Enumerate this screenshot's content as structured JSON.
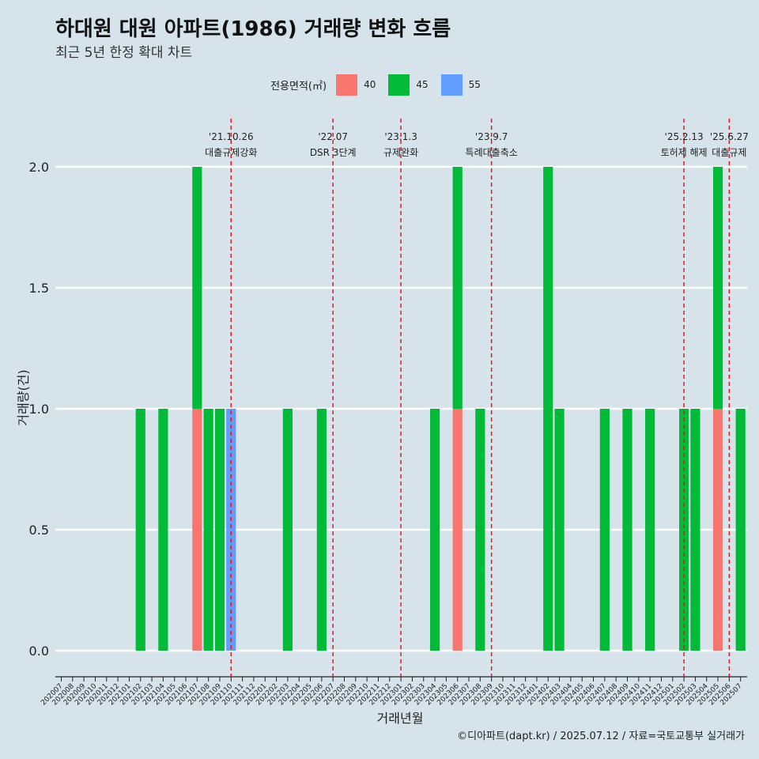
{
  "title": "하대원 대원 아파트(1986) 거래량 변화 흐름",
  "subtitle": "최근 5년 한정 확대 차트",
  "caption": "©디아파트(dapt.kr) / 2025.07.12 / 자료=국토교통부 실거래가",
  "legend": {
    "title": "전용면적(㎡)",
    "items": [
      {
        "label": "40",
        "color": "#f8766d"
      },
      {
        "label": "45",
        "color": "#00ba38"
      },
      {
        "label": "55",
        "color": "#619cff"
      }
    ]
  },
  "chart_data": {
    "type": "bar",
    "title": "하대원 대원 아파트(1986) 거래량 변화 흐름",
    "xlabel": "거래년월",
    "ylabel": "거래량(건)",
    "ylim": [
      0,
      2
    ],
    "yticks": [
      "0.0",
      "0.5",
      "1.0",
      "1.5",
      "2.0"
    ],
    "categories": [
      "202007",
      "202008",
      "202009",
      "202010",
      "202011",
      "202012",
      "202101",
      "202102",
      "202103",
      "202104",
      "202105",
      "202106",
      "202107",
      "202108",
      "202109",
      "202110",
      "202111",
      "202112",
      "202201",
      "202202",
      "202203",
      "202204",
      "202205",
      "202206",
      "202207",
      "202208",
      "202209",
      "202210",
      "202211",
      "202212",
      "202301",
      "202302",
      "202303",
      "202304",
      "202305",
      "202306",
      "202307",
      "202308",
      "202309",
      "202310",
      "202311",
      "202312",
      "202401",
      "202402",
      "202403",
      "202404",
      "202405",
      "202406",
      "202407",
      "202408",
      "202409",
      "202410",
      "202411",
      "202412",
      "202501",
      "202502",
      "202503",
      "202504",
      "202505",
      "202506",
      "202507"
    ],
    "series": [
      {
        "name": "40",
        "color": "#f8766d",
        "values": [
          0,
          0,
          0,
          0,
          0,
          0,
          0,
          0,
          0,
          0,
          0,
          0,
          1,
          0,
          0,
          0,
          0,
          0,
          0,
          0,
          0,
          0,
          0,
          0,
          0,
          0,
          0,
          0,
          0,
          0,
          0,
          0,
          0,
          0,
          0,
          1,
          0,
          0,
          0,
          0,
          0,
          0,
          0,
          0,
          0,
          0,
          0,
          0,
          0,
          0,
          0,
          0,
          0,
          0,
          0,
          0,
          0,
          0,
          1,
          0,
          0
        ]
      },
      {
        "name": "45",
        "color": "#00ba38",
        "values": [
          0,
          0,
          0,
          0,
          0,
          0,
          0,
          1,
          0,
          1,
          0,
          0,
          1,
          1,
          1,
          0,
          0,
          0,
          0,
          0,
          1,
          0,
          0,
          1,
          0,
          0,
          0,
          0,
          0,
          0,
          0,
          0,
          0,
          1,
          0,
          1,
          0,
          1,
          0,
          0,
          0,
          0,
          0,
          2,
          1,
          0,
          0,
          0,
          1,
          0,
          1,
          0,
          1,
          0,
          0,
          1,
          1,
          0,
          1,
          0,
          1
        ]
      },
      {
        "name": "55",
        "color": "#619cff",
        "values": [
          0,
          0,
          0,
          0,
          0,
          0,
          0,
          0,
          0,
          0,
          0,
          0,
          0,
          0,
          0,
          1,
          0,
          0,
          0,
          0,
          0,
          0,
          0,
          0,
          0,
          0,
          0,
          0,
          0,
          0,
          0,
          0,
          0,
          0,
          0,
          0,
          0,
          0,
          0,
          0,
          0,
          0,
          0,
          0,
          0,
          0,
          0,
          0,
          0,
          0,
          0,
          0,
          0,
          0,
          0,
          0,
          0,
          0,
          0,
          0,
          0
        ]
      }
    ],
    "annotations": [
      {
        "date": "'21.10.26",
        "text": "대출규제강화",
        "month_pos": 15.0
      },
      {
        "date": "'22.07",
        "text": "DSR 3단계",
        "month_pos": 24.0
      },
      {
        "date": "'23.1.3",
        "text": "규제완화",
        "month_pos": 30.0
      },
      {
        "date": "'23.9.7",
        "text": "특례대출축소",
        "month_pos": 38.0
      },
      {
        "date": "'25.2.13",
        "text": "토허제 해제",
        "month_pos": 55.0
      },
      {
        "date": "'25.6.27",
        "text": "대출규제",
        "month_pos": 59.0
      }
    ]
  }
}
